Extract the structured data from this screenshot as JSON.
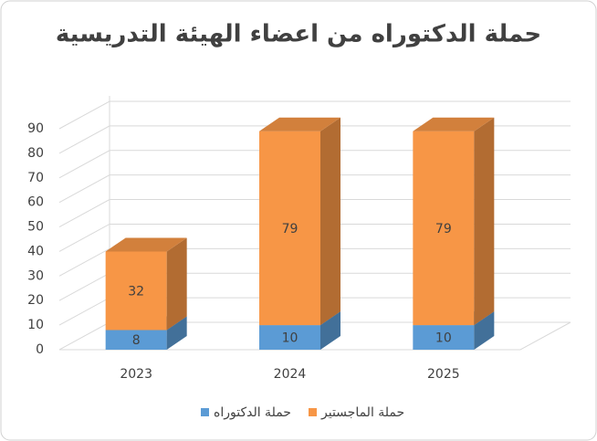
{
  "chart_data": {
    "type": "bar3d",
    "stacked": true,
    "title": "حملة الدكتوراه من اعضاء الهيئة التدريسية",
    "categories": [
      "2023",
      "2024",
      "2025"
    ],
    "series": [
      {
        "name": "حملة الدكتوراه",
        "color": "#5b9bd5",
        "values": [
          8,
          10,
          10
        ]
      },
      {
        "name": "حملة الماجستير",
        "color": "#f79646",
        "values": [
          32,
          79,
          79
        ]
      }
    ],
    "ylim": [
      0,
      90
    ],
    "yticks": [
      0,
      10,
      20,
      30,
      40,
      50,
      60,
      70,
      80,
      90
    ],
    "grid": true,
    "legend": "bottom"
  }
}
